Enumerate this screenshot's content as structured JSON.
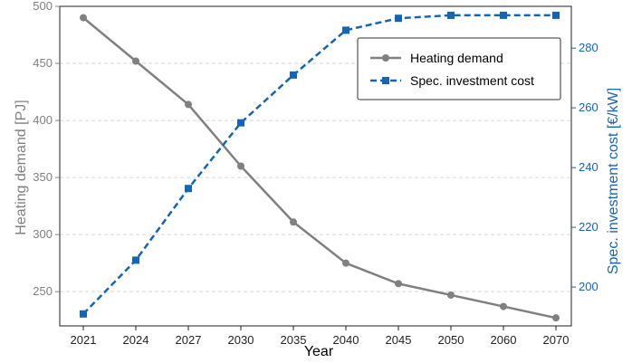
{
  "chart_data": {
    "type": "line",
    "xlabel": "Year",
    "ylabel_left": "Heating demand [PJ]",
    "ylabel_right": "Spec. investment cost [€/kW]",
    "categories": [
      "2021",
      "2024",
      "2027",
      "2030",
      "2035",
      "2040",
      "2045",
      "2050",
      "2060",
      "2070"
    ],
    "ylim_left": [
      220,
      500
    ],
    "yticks_left": [
      250,
      300,
      350,
      400,
      450,
      500
    ],
    "ylim_right": [
      187,
      294
    ],
    "yticks_right": [
      200,
      220,
      240,
      260,
      280
    ],
    "grid": "horizontal dashed",
    "legend_position": "top-right",
    "series": [
      {
        "name": "Heating demand",
        "axis": "left",
        "color": "#808080",
        "style": "solid",
        "marker": "circle",
        "values": [
          490,
          452,
          414,
          360,
          311,
          275,
          257,
          247,
          237,
          227
        ]
      },
      {
        "name": "Spec. investment cost",
        "axis": "right",
        "color": "#1565b3",
        "style": "dashed",
        "marker": "square",
        "values": [
          191,
          209,
          233,
          255,
          271,
          286,
          290,
          291,
          291,
          291
        ]
      }
    ]
  }
}
